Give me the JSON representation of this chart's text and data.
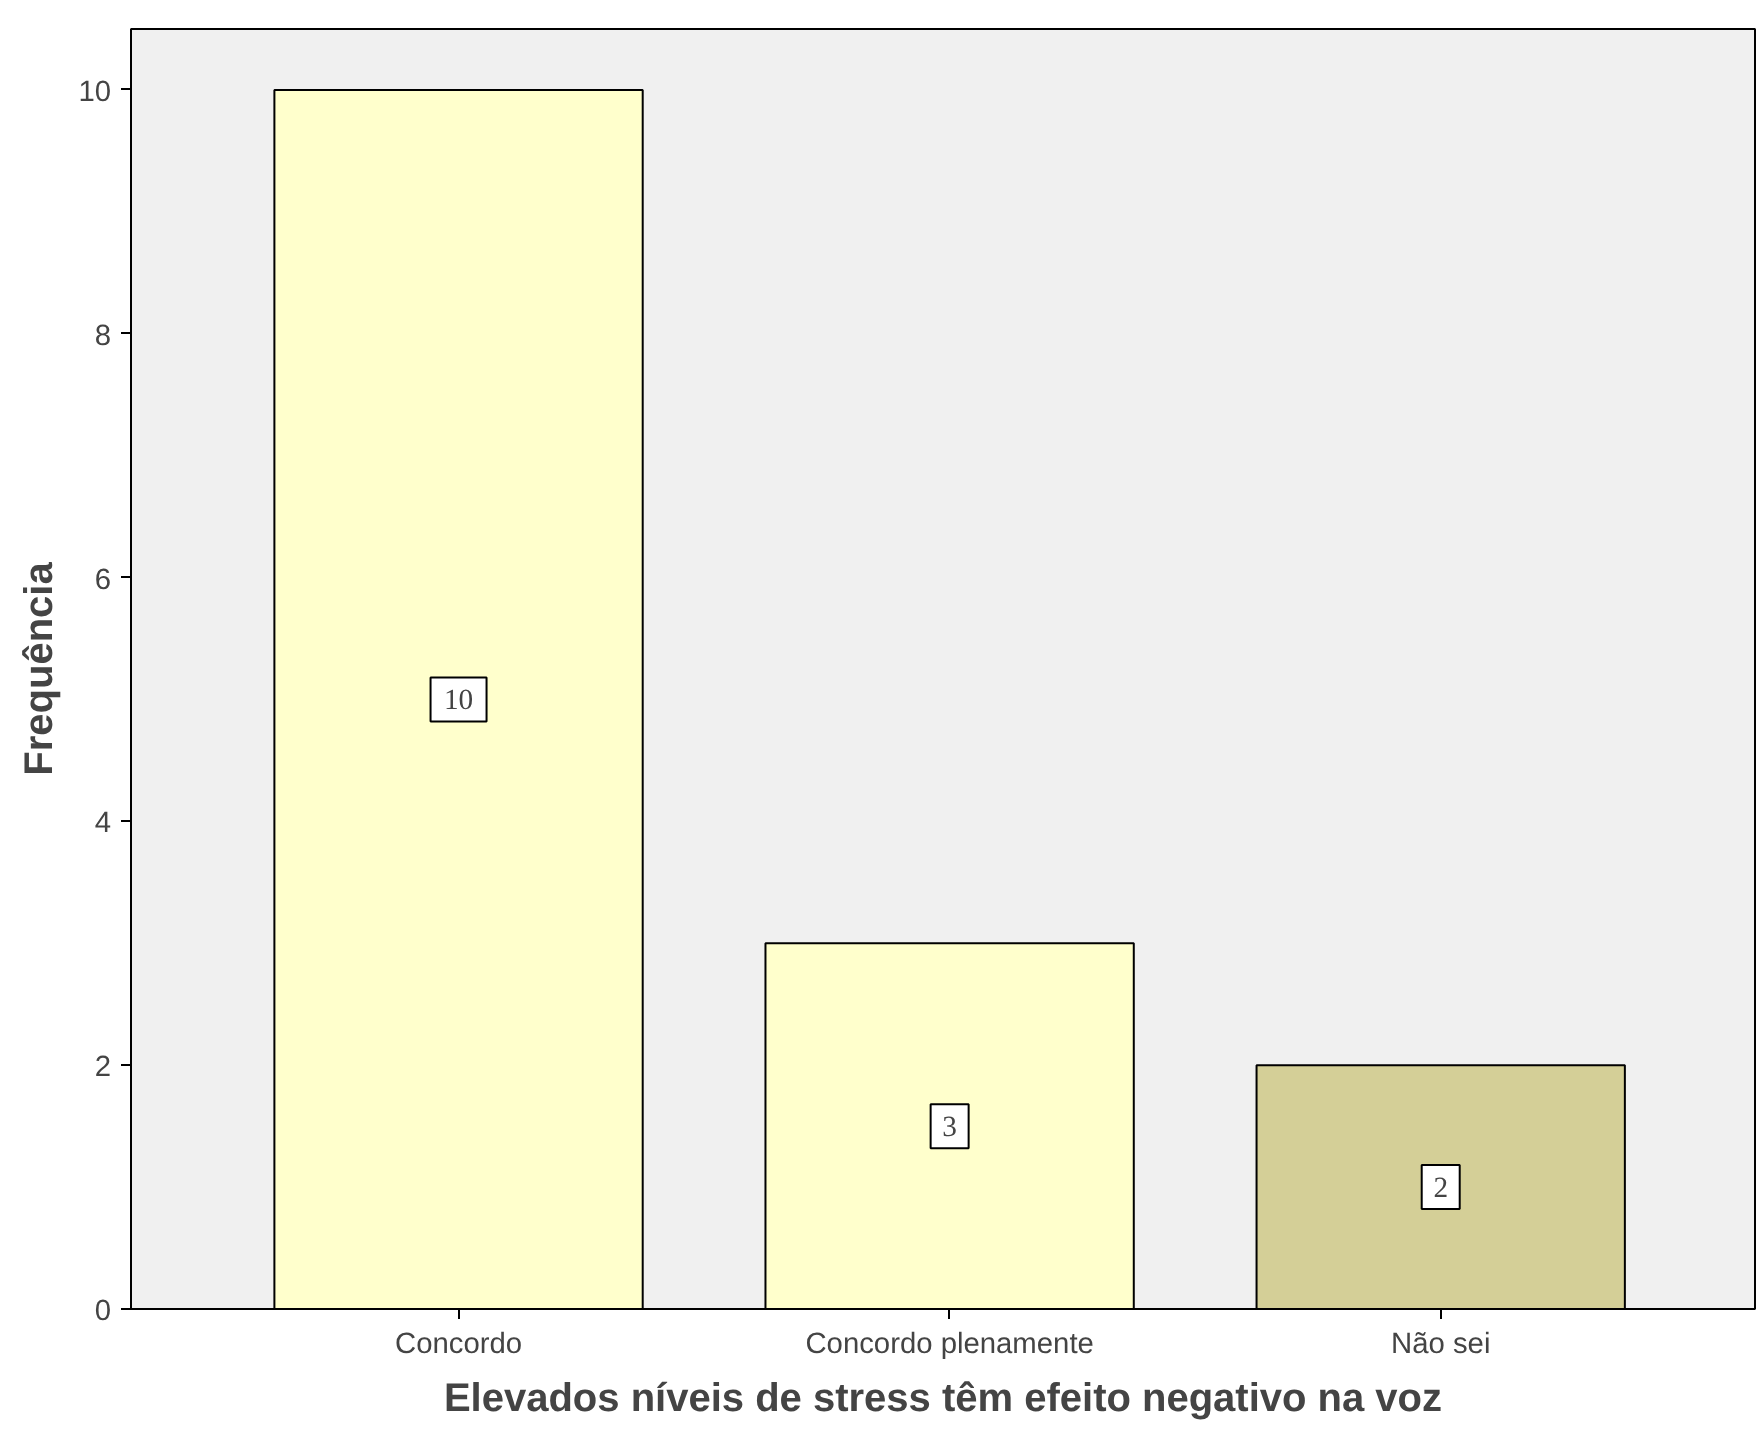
{
  "chart_data": {
    "type": "bar",
    "xlabel": "Elevados níveis de stress têm efeito negativo na voz",
    "ylabel": "Frequência",
    "categories": [
      "Concordo",
      "Concordo plenamente",
      "Não sei"
    ],
    "values": [
      10,
      3,
      2
    ],
    "colors": [
      "#ffffcc",
      "#ffffcc",
      "#d4cf97"
    ],
    "ylim": [
      0,
      10.5
    ],
    "yticks": [
      0,
      2,
      4,
      6,
      8,
      10
    ],
    "grid": false,
    "data_labels": true
  }
}
